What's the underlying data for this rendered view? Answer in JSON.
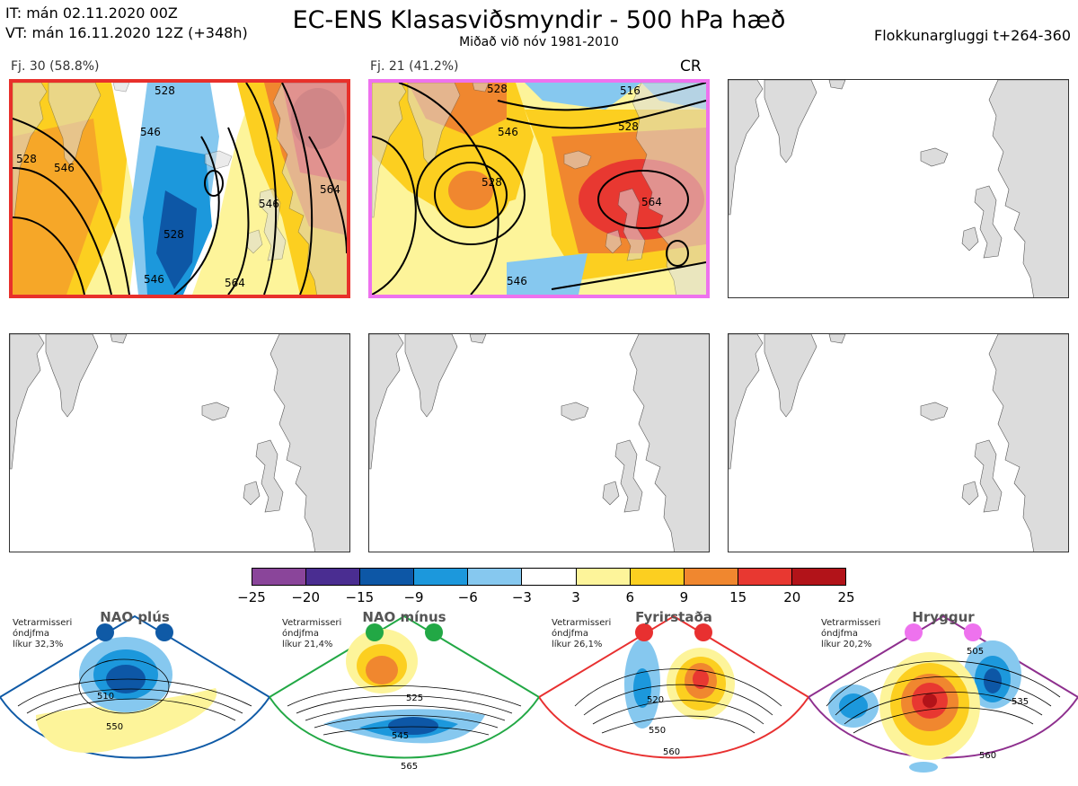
{
  "header": {
    "it_line": "IT: mán 02.11.2020 00Z",
    "vt_line": "VT: mán 16.11.2020 12Z  (+348h)",
    "title": "EC-ENS Klasasviðsmyndir - 500 hPa hæð",
    "subtitle": "Miðað við nóv 1981-2010",
    "window": "Flokkunargluggi t+264-360"
  },
  "clusters": [
    {
      "label": "Fj. 30 (58.8%)",
      "border": "#e8302b",
      "contours": [
        "528",
        "546",
        "528",
        "546",
        "564",
        "528",
        "546",
        "564",
        "546"
      ]
    },
    {
      "label": "Fj. 21 (41.2%)",
      "border": "#ee72ee",
      "tag": "CR",
      "contours": [
        "528",
        "528",
        "546",
        "528",
        "564",
        "546",
        "516"
      ]
    }
  ],
  "colorbar": {
    "colors": [
      "#8a459a",
      "#4a2d91",
      "#0d57a6",
      "#1c98dc",
      "#86c8ef",
      "#ffffff",
      "#fdf49a",
      "#fccf20",
      "#f0872f",
      "#e83831",
      "#b21319"
    ],
    "ticks": [
      "−25",
      "−20",
      "−15",
      "−9",
      "−6",
      "−3",
      "3",
      "6",
      "9",
      "15",
      "20",
      "25"
    ]
  },
  "regimes": [
    {
      "name": "NAO plús",
      "color": "#0f5aa6",
      "note_line1": "Vetrarmisseri",
      "note_line2": "óndjfma",
      "note_line3": "líkur 32,3%",
      "contours": [
        "510",
        "550"
      ]
    },
    {
      "name": "NAO mínus",
      "color": "#22a845",
      "note_line1": "Vetrarmisseri",
      "note_line2": "óndjfma",
      "note_line3": "líkur 21,4%",
      "contours": [
        "525",
        "545",
        "565"
      ]
    },
    {
      "name": "Fyrirstaða",
      "color": "#e83030",
      "note_line1": "Vetrarmisseri",
      "note_line2": "óndjfma",
      "note_line3": "líkur 26,1%",
      "contours": [
        "520",
        "550",
        "560"
      ]
    },
    {
      "name": "Hryggur",
      "color": "#e87de8",
      "note_line1": "Vetrarmisseri",
      "note_line2": "óndjfma",
      "note_line3": "líkur 20,2%",
      "contours": [
        "505",
        "535",
        "560"
      ]
    }
  ]
}
